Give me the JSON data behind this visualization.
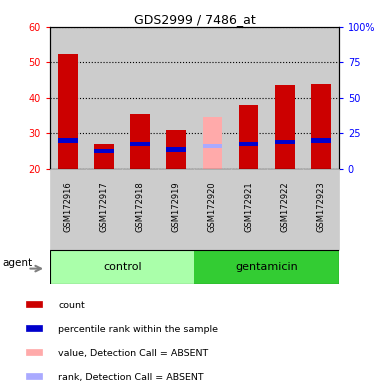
{
  "title": "GDS2999 / 7486_at",
  "samples": [
    "GSM172916",
    "GSM172917",
    "GSM172918",
    "GSM172919",
    "GSM172920",
    "GSM172921",
    "GSM172922",
    "GSM172923"
  ],
  "count_values": [
    52.5,
    27.0,
    35.5,
    31.0,
    0,
    38.0,
    43.5,
    44.0
  ],
  "rank_values": [
    28.0,
    25.0,
    27.0,
    25.5,
    0,
    27.0,
    27.5,
    28.0
  ],
  "absent_value": [
    0,
    0,
    0,
    0,
    34.5,
    0,
    0,
    0
  ],
  "absent_rank": [
    0,
    0,
    0,
    0,
    26.5,
    0,
    0,
    0
  ],
  "ymin": 20,
  "ymax": 60,
  "yticks": [
    20,
    30,
    40,
    50,
    60
  ],
  "right_yticks": [
    0,
    25,
    50,
    75,
    100
  ],
  "right_ytick_labels": [
    "0",
    "25",
    "50",
    "75",
    "100%"
  ],
  "color_count": "#cc0000",
  "color_rank": "#0000cc",
  "color_absent_value": "#ffaaaa",
  "color_absent_rank": "#aaaaff",
  "color_control_bg": "#aaffaa",
  "color_gentamicin_bg": "#33cc33",
  "color_sample_bg": "#cccccc",
  "bar_width": 0.55,
  "legend_items": [
    {
      "color": "#cc0000",
      "label": "count"
    },
    {
      "color": "#0000cc",
      "label": "percentile rank within the sample"
    },
    {
      "color": "#ffaaaa",
      "label": "value, Detection Call = ABSENT"
    },
    {
      "color": "#aaaaff",
      "label": "rank, Detection Call = ABSENT"
    }
  ]
}
